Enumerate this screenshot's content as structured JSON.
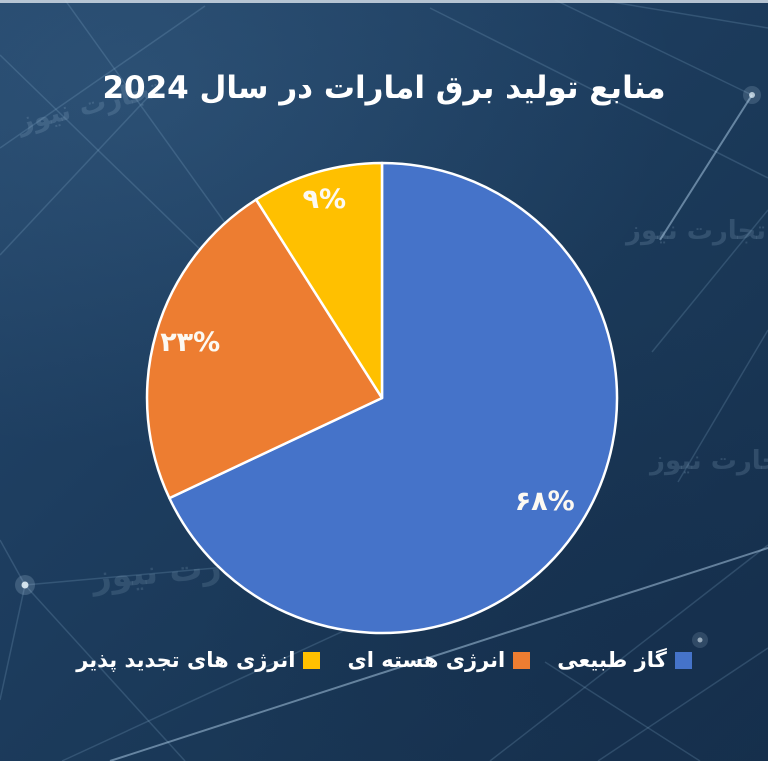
{
  "title": {
    "text": "منابع تولید برق امارات در سال 2024",
    "color": "#ffffff"
  },
  "watermark": {
    "text": "تجارت نیوز"
  },
  "chart_data": {
    "type": "pie",
    "title": "منابع تولید برق امارات در سال 2024",
    "start_angle_deg": 0,
    "direction": "clockwise",
    "stroke_color": "#ffffff",
    "label_color": "#fcf9f2",
    "legend_position": "bottom",
    "slices": [
      {
        "label": "گاز طبیعی",
        "value": 68,
        "display": "۶۸%",
        "color": "#4573c9",
        "label_r": 0.82
      },
      {
        "label": "انرژی هسته ای",
        "value": 23,
        "display": "۲۳%",
        "color": "#ed7d31",
        "label_r": 0.85
      },
      {
        "label": "انرژی های تجدید پذیر",
        "value": 9,
        "display": "۹%",
        "color": "#ffc000",
        "label_r": 0.88
      }
    ]
  }
}
